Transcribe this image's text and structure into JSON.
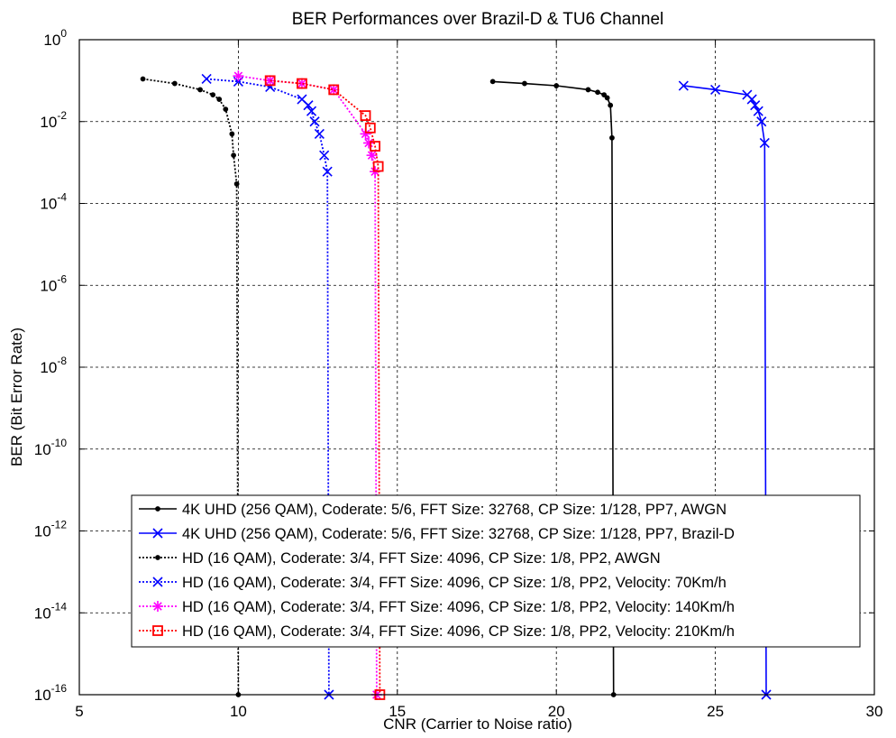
{
  "chart_data": {
    "type": "line",
    "title": "BER Performances over Brazil-D & TU6 Channel",
    "xlabel": "CNR (Carrier to Noise ratio)",
    "ylabel": "BER (Bit Error Rate)",
    "xlim": [
      5,
      30
    ],
    "ylim_exp": [
      -16,
      0
    ],
    "y_scale": "log10",
    "grid": true,
    "legend_position": "bottom-right",
    "x_ticks": [
      "5",
      "10",
      "15",
      "20",
      "25",
      "30"
    ],
    "y_ticks": [
      {
        "base": "10",
        "exp": "0"
      },
      {
        "base": "10",
        "exp": "-2"
      },
      {
        "base": "10",
        "exp": "-4"
      },
      {
        "base": "10",
        "exp": "-6"
      },
      {
        "base": "10",
        "exp": "-8"
      },
      {
        "base": "10",
        "exp": "-10"
      },
      {
        "base": "10",
        "exp": "-12"
      },
      {
        "base": "10",
        "exp": "-14"
      },
      {
        "base": "10",
        "exp": "-16"
      }
    ],
    "series": [
      {
        "name": "4K UHD (256 QAM), Coderate: 5/6, FFT Size: 32768, CP Size: 1/128, PP7, AWGN",
        "color": "#000000",
        "dash": "solid",
        "marker": "dot",
        "points": [
          [
            18,
            0.095
          ],
          [
            19,
            0.085
          ],
          [
            20,
            0.075
          ],
          [
            21,
            0.06
          ],
          [
            21.3,
            0.052
          ],
          [
            21.5,
            0.045
          ],
          [
            21.6,
            0.038
          ],
          [
            21.7,
            0.025
          ],
          [
            21.75,
            0.004
          ],
          [
            21.8,
            1e-16
          ]
        ]
      },
      {
        "name": "4K UHD (256 QAM), Coderate: 5/6, FFT Size: 32768, CP Size: 1/128, PP7, Brazil-D",
        "color": "#0000ff",
        "dash": "solid",
        "marker": "x",
        "points": [
          [
            24,
            0.075
          ],
          [
            25,
            0.06
          ],
          [
            26,
            0.045
          ],
          [
            26.15,
            0.035
          ],
          [
            26.25,
            0.025
          ],
          [
            26.35,
            0.018
          ],
          [
            26.45,
            0.01
          ],
          [
            26.55,
            0.003
          ],
          [
            26.6,
            1e-16
          ]
        ]
      },
      {
        "name": "HD (16 QAM), Coderate: 3/4, FFT Size: 4096, CP Size: 1/8, PP2, AWGN",
        "color": "#000000",
        "dash": "dotted",
        "marker": "dot",
        "points": [
          [
            7,
            0.11
          ],
          [
            8,
            0.085
          ],
          [
            8.8,
            0.06
          ],
          [
            9.2,
            0.045
          ],
          [
            9.4,
            0.035
          ],
          [
            9.6,
            0.02
          ],
          [
            9.8,
            0.005
          ],
          [
            9.85,
            0.0015
          ],
          [
            9.95,
            0.0003
          ],
          [
            10,
            1e-16
          ]
        ]
      },
      {
        "name": "HD (16 QAM), Coderate: 3/4, FFT Size: 4096, CP Size: 1/8, PP2, Velocity: 70Km/h",
        "color": "#0000ff",
        "dash": "dotted",
        "marker": "x",
        "points": [
          [
            9,
            0.11
          ],
          [
            10,
            0.095
          ],
          [
            11,
            0.07
          ],
          [
            12,
            0.035
          ],
          [
            12.2,
            0.025
          ],
          [
            12.3,
            0.018
          ],
          [
            12.4,
            0.01
          ],
          [
            12.55,
            0.005
          ],
          [
            12.7,
            0.0015
          ],
          [
            12.8,
            0.0006
          ],
          [
            12.85,
            1e-16
          ]
        ]
      },
      {
        "name": "HD (16 QAM), Coderate: 3/4, FFT Size: 4096, CP Size: 1/8, PP2, Velocity: 140Km/h",
        "color": "#ff00ff",
        "dash": "dotted",
        "marker": "star",
        "points": [
          [
            10,
            0.13
          ],
          [
            11,
            0.1
          ],
          [
            12,
            0.085
          ],
          [
            13,
            0.06
          ],
          [
            14,
            0.005
          ],
          [
            14.1,
            0.003
          ],
          [
            14.2,
            0.0015
          ],
          [
            14.3,
            0.0006
          ],
          [
            14.35,
            1e-16
          ]
        ]
      },
      {
        "name": "HD (16 QAM), Coderate: 3/4, FFT Size: 4096, CP Size: 1/8, PP2, Velocity: 210Km/h",
        "color": "#ff0000",
        "dash": "dotted",
        "marker": "square",
        "points": [
          [
            11,
            0.1
          ],
          [
            12,
            0.085
          ],
          [
            13,
            0.06
          ],
          [
            14,
            0.014
          ],
          [
            14.15,
            0.007
          ],
          [
            14.3,
            0.0025
          ],
          [
            14.4,
            0.0008
          ],
          [
            14.45,
            1e-16
          ]
        ]
      }
    ]
  }
}
